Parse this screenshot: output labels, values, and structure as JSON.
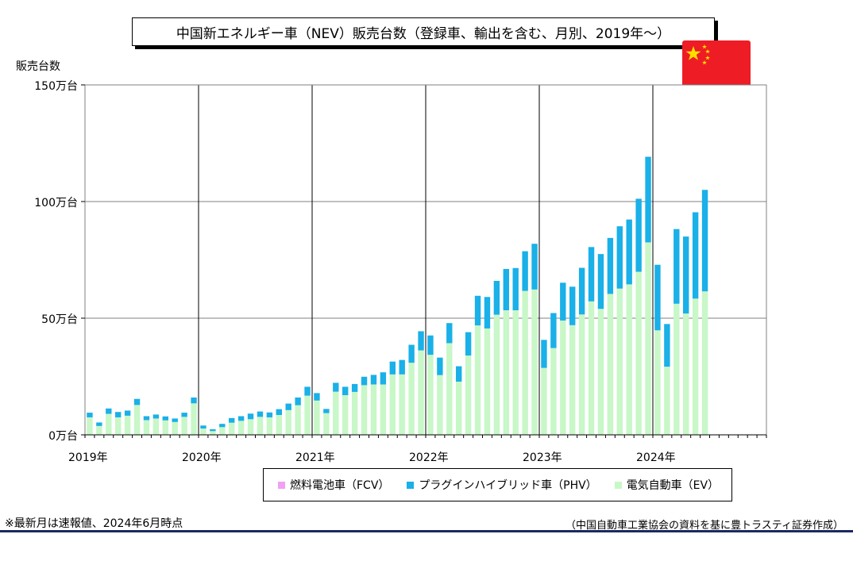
{
  "chart_data": {
    "type": "bar",
    "stacked": true,
    "title": "中国新エネルギー車（NEV）販売台数（登録車、輸出を含む、月別、2019年～）",
    "ylabel": "販売台数",
    "ylim": [
      0,
      150
    ],
    "y_ticks": [
      "0万台",
      "50万台",
      "100万台",
      "150万台"
    ],
    "y_tick_values": [
      0,
      50,
      100,
      150
    ],
    "x_ticks": [
      "2019年",
      "2020年",
      "2021年",
      "2022年",
      "2023年",
      "2024年"
    ],
    "x_range": [
      "2019-01",
      "2024-12"
    ],
    "legend_position": "bottom",
    "grid": true,
    "categories": [
      "2019-01",
      "2019-02",
      "2019-03",
      "2019-04",
      "2019-05",
      "2019-06",
      "2019-07",
      "2019-08",
      "2019-09",
      "2019-10",
      "2019-11",
      "2019-12",
      "2020-01",
      "2020-02",
      "2020-03",
      "2020-04",
      "2020-05",
      "2020-06",
      "2020-07",
      "2020-08",
      "2020-09",
      "2020-10",
      "2020-11",
      "2020-12",
      "2021-01",
      "2021-02",
      "2021-03",
      "2021-04",
      "2021-05",
      "2021-06",
      "2021-07",
      "2021-08",
      "2021-09",
      "2021-10",
      "2021-11",
      "2021-12",
      "2022-01",
      "2022-02",
      "2022-03",
      "2022-04",
      "2022-05",
      "2022-06",
      "2022-07",
      "2022-08",
      "2022-09",
      "2022-10",
      "2022-11",
      "2022-12",
      "2023-01",
      "2023-02",
      "2023-03",
      "2023-04",
      "2023-05",
      "2023-06",
      "2023-07",
      "2023-08",
      "2023-09",
      "2023-10",
      "2023-11",
      "2023-12",
      "2024-01",
      "2024-02",
      "2024-03",
      "2024-04",
      "2024-05",
      "2024-06"
    ],
    "series": [
      {
        "name": "燃料電池車（FCV）",
        "color": "#f2a0f2",
        "values": [
          0,
          0,
          0,
          0,
          0,
          0,
          0,
          0,
          0,
          0,
          0,
          0,
          0,
          0,
          0,
          0,
          0,
          0,
          0,
          0,
          0,
          0,
          0,
          0,
          0,
          0,
          0,
          0,
          0,
          0,
          0,
          0,
          0,
          0,
          0,
          0,
          0,
          0,
          0,
          0,
          0,
          0,
          0,
          0,
          0,
          0,
          0,
          0,
          0,
          0,
          0,
          0,
          0,
          0,
          0,
          0,
          0,
          0,
          0,
          0,
          0,
          0,
          0,
          0,
          0,
          0
        ]
      },
      {
        "name": "プラグインハイブリッド車（PHV）",
        "color": "#1ab0e8",
        "values": [
          2,
          1.5,
          2.3,
          2.3,
          2.2,
          2.6,
          1.7,
          1.7,
          1.7,
          1.5,
          1.8,
          2.5,
          1.3,
          0.8,
          1.4,
          2,
          2,
          2.4,
          2.3,
          2.1,
          2.5,
          2.8,
          3.3,
          3.8,
          3.2,
          1.8,
          3.8,
          3.6,
          3.4,
          3.6,
          4.1,
          5.2,
          5.5,
          6.2,
          7.7,
          8.2,
          8.3,
          7.5,
          8.6,
          6.6,
          10,
          12.7,
          13.5,
          14.5,
          17.7,
          18.1,
          17,
          19.6,
          12,
          15,
          16.2,
          16.5,
          20,
          23.3,
          23.5,
          24,
          26.7,
          27.8,
          31.3,
          36.7,
          28.1,
          18.3,
          32,
          33,
          37,
          43.5
        ]
      },
      {
        "name": "電気自動車（EV）",
        "color": "#c8f7c8",
        "values": [
          7.5,
          3.8,
          9,
          7.5,
          8.2,
          12.8,
          6.3,
          7,
          6.2,
          5.5,
          7.7,
          13.5,
          2.7,
          1.6,
          3.3,
          5.2,
          6,
          6.7,
          7.7,
          7.5,
          8.5,
          10.6,
          12.7,
          16.8,
          14.7,
          9.3,
          18.5,
          17,
          18.4,
          21.3,
          21.6,
          21.6,
          25.9,
          25.9,
          30.9,
          36.2,
          34.3,
          25.6,
          39.3,
          22.8,
          34,
          46.9,
          45.6,
          51.5,
          53.4,
          53.4,
          61.7,
          62.3,
          28.7,
          37.2,
          49,
          47,
          51.6,
          57.2,
          54,
          60.4,
          62.7,
          64.5,
          69.9,
          82.5,
          44.8,
          29.2,
          56.2,
          52,
          58.4,
          61.5
        ]
      }
    ]
  },
  "legend": [
    {
      "label": "燃料電池車（FCV）",
      "color": "#f2a0f2"
    },
    {
      "label": "プラグインハイブリッド車（PHV）",
      "color": "#1ab0e8"
    },
    {
      "label": "電気自動車（EV）",
      "color": "#c8f7c8"
    }
  ],
  "notes": {
    "left": "※最新月は速報値、2024年6月時点",
    "right": "（中国自動車工業協会の資料を基に豊トラスティ証券作成）"
  },
  "flag": {
    "name": "china-flag",
    "color": "#ee1c25",
    "star_color": "#ffde00"
  }
}
